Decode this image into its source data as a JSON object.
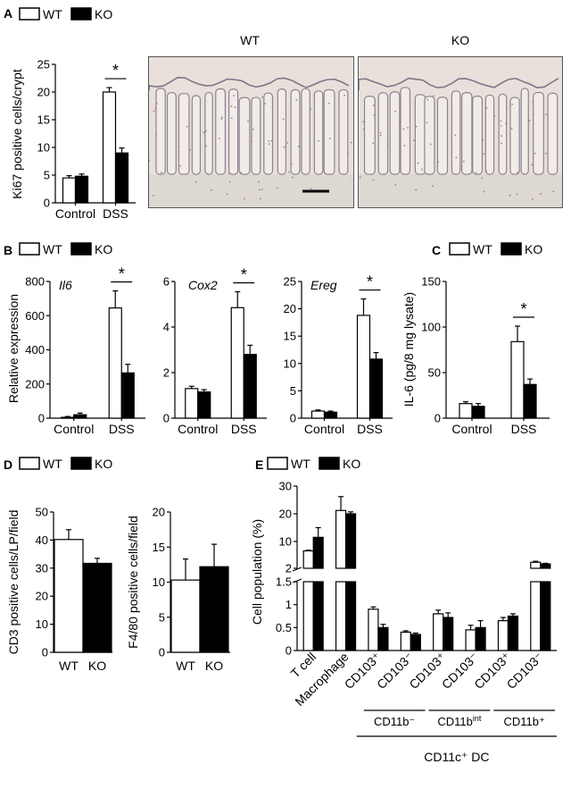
{
  "legend": {
    "wt": "WT",
    "ko": "KO"
  },
  "colors": {
    "wt": "#ffffff",
    "ko": "#000000",
    "stroke": "#000000"
  },
  "significance_mark": "*",
  "panel_a": {
    "letter": "A",
    "micrograph_labels": [
      "WT",
      "KO"
    ],
    "chart_data": {
      "type": "bar",
      "ylabel": "Ki67 positive cells/crypt",
      "categories": [
        "Control",
        "DSS"
      ],
      "series": [
        {
          "name": "WT",
          "values": [
            4.5,
            20.0
          ],
          "errors": [
            0.4,
            0.8
          ]
        },
        {
          "name": "KO",
          "values": [
            4.8,
            9.0
          ],
          "errors": [
            0.4,
            0.9
          ]
        }
      ],
      "ylim": [
        0,
        25
      ],
      "yticks": [
        0,
        5,
        10,
        15,
        20,
        25
      ],
      "significance": [
        {
          "category": "DSS",
          "label": "*"
        }
      ]
    }
  },
  "panel_b": {
    "letter": "B",
    "ylabel": "Relative expression",
    "charts": [
      {
        "type": "bar",
        "title": "Il6",
        "categories": [
          "Control",
          "DSS"
        ],
        "series": [
          {
            "name": "WT",
            "values": [
              5,
              645
            ],
            "errors": [
              5,
              100
            ]
          },
          {
            "name": "KO",
            "values": [
              20,
              265
            ],
            "errors": [
              10,
              50
            ]
          }
        ],
        "ylim": [
          0,
          800
        ],
        "yticks": [
          0,
          200,
          400,
          600,
          800
        ],
        "significance": [
          {
            "category": "DSS",
            "label": "*"
          }
        ]
      },
      {
        "type": "bar",
        "title": "Cox2",
        "categories": [
          "Control",
          "DSS"
        ],
        "series": [
          {
            "name": "WT",
            "values": [
              1.3,
              4.85
            ],
            "errors": [
              0.1,
              0.7
            ]
          },
          {
            "name": "KO",
            "values": [
              1.15,
              2.8
            ],
            "errors": [
              0.1,
              0.4
            ]
          }
        ],
        "ylim": [
          0,
          6
        ],
        "yticks": [
          0,
          2,
          4,
          6
        ],
        "significance": [
          {
            "category": "DSS",
            "label": "*"
          }
        ]
      },
      {
        "type": "bar",
        "title": "Ereg",
        "categories": [
          "Control",
          "DSS"
        ],
        "series": [
          {
            "name": "WT",
            "values": [
              1.3,
              18.8
            ],
            "errors": [
              0.2,
              3.0
            ]
          },
          {
            "name": "KO",
            "values": [
              1.1,
              10.8
            ],
            "errors": [
              0.2,
              1.2
            ]
          }
        ],
        "ylim": [
          0,
          25
        ],
        "yticks": [
          0,
          5,
          10,
          15,
          20,
          25
        ],
        "significance": [
          {
            "category": "DSS",
            "label": "*"
          }
        ]
      }
    ]
  },
  "panel_c": {
    "letter": "C",
    "chart_data": {
      "type": "bar",
      "ylabel": "IL-6 (pg/8 mg lysate)",
      "categories": [
        "Control",
        "DSS"
      ],
      "series": [
        {
          "name": "WT",
          "values": [
            16,
            84
          ],
          "errors": [
            2,
            17
          ]
        },
        {
          "name": "KO",
          "values": [
            13,
            37
          ],
          "errors": [
            3,
            6
          ]
        }
      ],
      "ylim": [
        0,
        150
      ],
      "yticks": [
        0,
        50,
        100,
        150
      ],
      "significance": [
        {
          "category": "DSS",
          "label": "*"
        }
      ]
    }
  },
  "panel_d": {
    "letter": "D",
    "charts": [
      {
        "type": "bar",
        "ylabel": "CD3 positive cells/LP/field",
        "categories": [
          "WT",
          "KO"
        ],
        "values": [
          40.2,
          31.7
        ],
        "errors": [
          3.5,
          1.8
        ],
        "ylim": [
          0,
          50
        ],
        "yticks": [
          0,
          10,
          20,
          30,
          40,
          50
        ]
      },
      {
        "type": "bar",
        "ylabel": "F4/80 positive cells/field",
        "categories": [
          "WT",
          "KO"
        ],
        "values": [
          10.3,
          12.2
        ],
        "errors": [
          3.0,
          3.2
        ],
        "ylim": [
          0,
          20
        ],
        "yticks": [
          0,
          5,
          10,
          15,
          20
        ]
      }
    ]
  },
  "panel_e": {
    "letter": "E",
    "chart_data": {
      "type": "bar",
      "ylabel": "Cell population (%)",
      "categories": [
        "T cell",
        "Macrophage",
        "CD103⁺",
        "CD103⁻",
        "CD103⁺",
        "CD103⁻",
        "CD103⁺",
        "CD103⁻"
      ],
      "series": [
        {
          "name": "WT",
          "values": [
            7.2,
            21.2,
            0.9,
            0.4,
            0.8,
            0.45,
            0.65,
            3.8
          ],
          "errors": [
            0.2,
            5.0,
            0.05,
            0.03,
            0.08,
            0.1,
            0.07,
            0.3
          ]
        },
        {
          "name": "KO",
          "values": [
            11.5,
            20.0,
            0.5,
            0.35,
            0.72,
            0.5,
            0.75,
            3.3
          ],
          "errors": [
            3.5,
            0.7,
            0.07,
            0.03,
            0.1,
            0.15,
            0.05,
            0.2
          ]
        }
      ],
      "ylim": [
        0,
        30
      ],
      "axis_break": true,
      "yticks_upper": [
        2,
        10,
        20,
        30
      ],
      "yticks_lower": [
        0,
        0.5,
        1,
        1.5
      ],
      "groups": [
        {
          "label": "CD11b⁻",
          "categories": [
            2,
            3
          ]
        },
        {
          "label": "CD11bint",
          "categories": [
            4,
            5
          ]
        },
        {
          "label": "CD11b⁺",
          "categories": [
            6,
            7
          ]
        }
      ],
      "supergroup": "CD11c⁺ DC"
    }
  }
}
